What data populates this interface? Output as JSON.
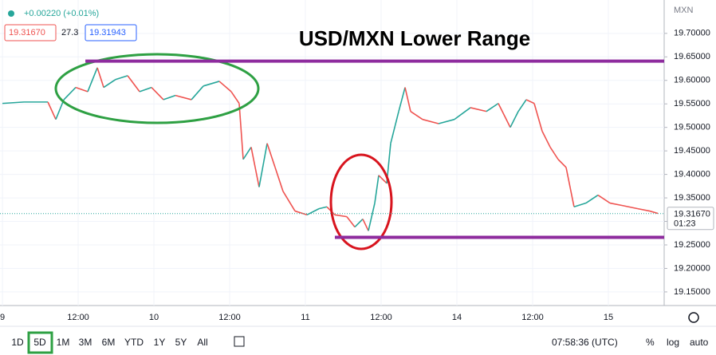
{
  "header": {
    "change": "+0.00220 (+0.01%)",
    "sell": "19.31670",
    "spread": "27.3",
    "buy": "19.31943"
  },
  "toolbar": {
    "ranges": [
      "1D",
      "5D",
      "1M",
      "3M",
      "6M",
      "YTD",
      "1Y",
      "5Y",
      "All"
    ],
    "clock": "07:58:36 (UTC)",
    "percent": "%",
    "log": "log",
    "auto": "auto"
  },
  "chart_data": {
    "type": "line",
    "title": "USD/MXN Lower Range",
    "currency": "MXN",
    "x": [
      0,
      0.284,
      0.6,
      0.705,
      0.811,
      0.968,
      1.126,
      1.253,
      1.337,
      1.495,
      1.653,
      1.811,
      1.968,
      2.126,
      2.284,
      2.495,
      2.653,
      2.863,
      3.021,
      3.126,
      3.179,
      3.284,
      3.389,
      3.495,
      3.6,
      3.705,
      3.863,
      4.021,
      4.179,
      4.284,
      4.389,
      4.547,
      4.653,
      4.758,
      4.832,
      4.916,
      4.968,
      5.074,
      5.126,
      5.232,
      5.316,
      5.389,
      5.547,
      5.758,
      5.968,
      6.179,
      6.389,
      6.547,
      6.705,
      6.811,
      6.916,
      7.021,
      7.126,
      7.232,
      7.337,
      7.442,
      7.547,
      7.705,
      7.863,
      8.021,
      8.179,
      8.389,
      8.547,
      8.653
    ],
    "values": [
      19.551,
      19.554,
      19.554,
      19.517,
      19.559,
      19.585,
      19.576,
      19.627,
      19.585,
      19.602,
      19.61,
      19.576,
      19.585,
      19.559,
      19.568,
      19.559,
      19.588,
      19.598,
      19.576,
      19.551,
      19.432,
      19.458,
      19.373,
      19.466,
      19.415,
      19.364,
      19.322,
      19.314,
      19.327,
      19.331,
      19.314,
      19.31,
      19.288,
      19.305,
      19.28,
      19.339,
      19.398,
      19.381,
      19.466,
      19.534,
      19.585,
      19.534,
      19.517,
      19.508,
      19.517,
      19.542,
      19.534,
      19.551,
      19.5,
      19.534,
      19.559,
      19.551,
      19.492,
      19.458,
      19.432,
      19.415,
      19.331,
      19.339,
      19.356,
      19.339,
      19.334,
      19.327,
      19.322,
      19.317
    ],
    "up_color": "#26a69a",
    "down_color": "#ef5350",
    "xlim": [
      -0.032,
      8.737
    ],
    "xticks": [
      {
        "value": 0,
        "label": "9"
      },
      {
        "value": 1,
        "label": "12:00"
      },
      {
        "value": 2,
        "label": "10"
      },
      {
        "value": 3,
        "label": "12:00"
      },
      {
        "value": 4,
        "label": "11"
      },
      {
        "value": 5,
        "label": "12:00"
      },
      {
        "value": 6,
        "label": "14"
      },
      {
        "value": 7,
        "label": "12:00"
      },
      {
        "value": 8,
        "label": "15"
      }
    ],
    "ylim": [
      19.121,
      19.771
    ],
    "yticks": [
      {
        "value": 19.15,
        "label": "19.15000"
      },
      {
        "value": 19.2,
        "label": "19.20000"
      },
      {
        "value": 19.25,
        "label": "19.25000"
      },
      {
        "value": 19.3,
        "label": "19.30000"
      },
      {
        "value": 19.35,
        "label": "19.35000"
      },
      {
        "value": 19.4,
        "label": "19.40000"
      },
      {
        "value": 19.45,
        "label": "19.45000"
      },
      {
        "value": 19.5,
        "label": "19.50000"
      },
      {
        "value": 19.55,
        "label": "19.55000"
      },
      {
        "value": 19.6,
        "label": "19.60000"
      },
      {
        "value": 19.65,
        "label": "19.65000"
      },
      {
        "value": 19.7,
        "label": "19.70000"
      }
    ],
    "grid": true,
    "last_price": {
      "value": 19.3167,
      "label": "19.31670",
      "countdown": "01:23"
    },
    "hlines": [
      {
        "value": 19.641,
        "x_start": 1.095,
        "color": "#8e2c9e"
      },
      {
        "value": 19.266,
        "x_start": 4.389,
        "color": "#8e2c9e"
      }
    ]
  }
}
